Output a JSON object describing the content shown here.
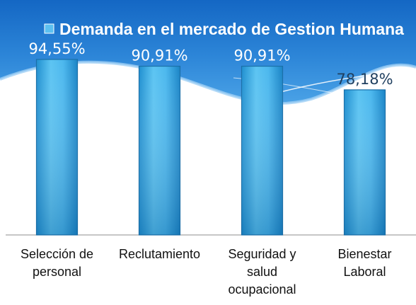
{
  "chart_data": {
    "type": "bar",
    "legend": "Demanda en el mercado de Gestion Humana",
    "legend_position": "top",
    "categories": [
      [
        "Selección de",
        "personal"
      ],
      [
        "Reclutamiento"
      ],
      [
        "Seguridad y",
        "salud",
        "ocupacional"
      ],
      [
        "Bienestar",
        "Laboral"
      ]
    ],
    "series": [
      {
        "name": "Demanda en el mercado de Gestion Humana",
        "values": [
          94.55,
          90.91,
          90.91,
          78.18
        ],
        "labels": [
          "94,55%",
          "90,91%",
          "90,91%",
          "78,18%"
        ],
        "color": "#3aaee0"
      }
    ],
    "ylim": [
      0,
      100
    ],
    "grid": false
  }
}
